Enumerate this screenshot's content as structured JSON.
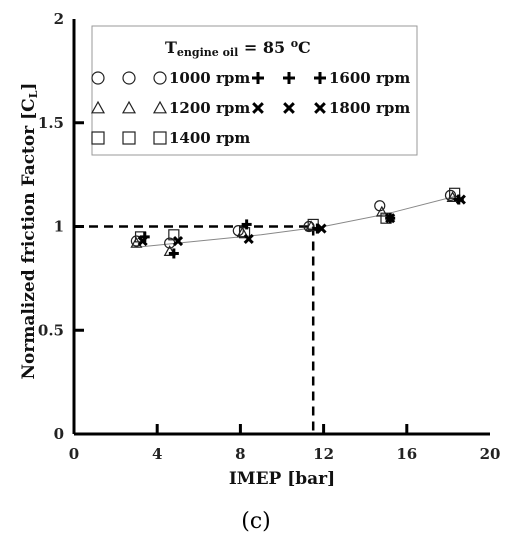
{
  "chart_data": {
    "type": "scatter",
    "xlabel": "IMEP [bar]",
    "ylabel": "Normalized friction Factor [C",
    "ylabel_sub": "L",
    "ylabel_close": "]",
    "xlim": [
      0,
      20
    ],
    "ylim": [
      0,
      2
    ],
    "x_ticks": [
      0,
      4,
      8,
      12,
      16,
      20
    ],
    "y_ticks": [
      0,
      0.5,
      1,
      1.5,
      2
    ],
    "x_tick_labels": [
      "0",
      "4",
      "8",
      "12",
      "16",
      "20"
    ],
    "y_tick_labels": [
      "0",
      "0.5",
      "1",
      "1.5",
      "2"
    ],
    "grid": false,
    "legend_position": "top",
    "legend_title": {
      "prefix": "T",
      "subscript": "engine oil",
      "middle": " = 85 ",
      "superscript": "o",
      "suffix": "C"
    },
    "series": [
      {
        "name": "1000 rpm",
        "marker": "circle",
        "points": [
          [
            3.0,
            0.93
          ],
          [
            4.6,
            0.92
          ],
          [
            7.9,
            0.98
          ],
          [
            11.3,
            1.0
          ],
          [
            14.7,
            1.1
          ],
          [
            18.1,
            1.15
          ]
        ]
      },
      {
        "name": "1200 rpm",
        "marker": "triangle",
        "points": [
          [
            3.0,
            0.92
          ],
          [
            4.6,
            0.88
          ],
          [
            8.1,
            0.97
          ],
          [
            11.4,
            1.0
          ],
          [
            14.8,
            1.07
          ],
          [
            18.2,
            1.14
          ]
        ]
      },
      {
        "name": "1400 rpm",
        "marker": "square",
        "points": [
          [
            3.2,
            0.95
          ],
          [
            4.8,
            0.96
          ],
          [
            8.2,
            0.97
          ],
          [
            11.5,
            1.01
          ],
          [
            15.0,
            1.04
          ],
          [
            18.3,
            1.16
          ]
        ]
      },
      {
        "name": "1600 rpm",
        "marker": "plus",
        "points": [
          [
            3.4,
            0.95
          ],
          [
            4.8,
            0.87
          ],
          [
            8.3,
            1.01
          ],
          [
            11.7,
            0.99
          ],
          [
            15.2,
            1.04
          ],
          [
            18.5,
            1.13
          ]
        ]
      },
      {
        "name": "1800 rpm",
        "marker": "x",
        "points": [
          [
            3.3,
            0.93
          ],
          [
            5.0,
            0.93
          ],
          [
            8.4,
            0.94
          ],
          [
            11.9,
            0.99
          ],
          [
            15.2,
            1.04
          ],
          [
            18.6,
            1.13
          ]
        ]
      }
    ],
    "fit_curve": {
      "x": [
        3,
        6,
        9,
        12,
        15,
        18.5
      ],
      "y": [
        0.9,
        0.93,
        0.96,
        1.0,
        1.06,
        1.15
      ]
    },
    "reference_line": {
      "x": 11.5,
      "y": 1.0
    },
    "panel_label": "(c)"
  }
}
